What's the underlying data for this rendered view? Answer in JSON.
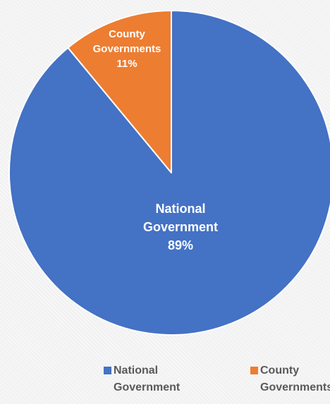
{
  "chart_data": {
    "type": "pie",
    "start_angle_deg": 0,
    "direction": "clockwise",
    "border_color": "#ffffff",
    "slices": [
      {
        "name": "National Government",
        "value": 89,
        "label_lines": [
          "National",
          "Government",
          "89%"
        ],
        "color": "#4472c4"
      },
      {
        "name": "County Governments",
        "value": 11,
        "label_lines": [
          "County",
          "Governments",
          "11%"
        ],
        "color": "#ed7d31"
      }
    ],
    "legend": {
      "position": "bottom",
      "items": [
        {
          "lines": [
            "National",
            "Government"
          ],
          "color": "#4472c4"
        },
        {
          "lines": [
            "County",
            "Governments"
          ],
          "color": "#ed7d31"
        }
      ]
    }
  }
}
